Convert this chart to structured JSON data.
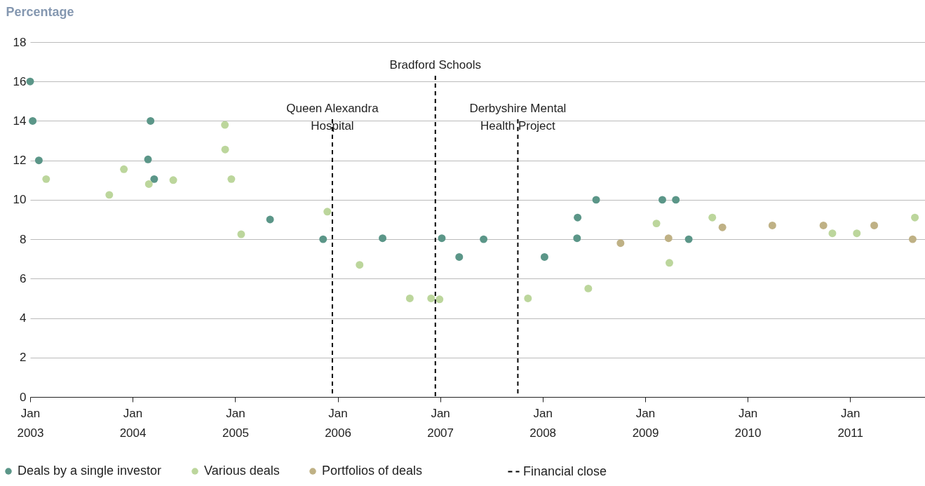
{
  "chart_data": {
    "type": "scatter",
    "ylabel": "Percentage",
    "xlim": [
      "2003-01-01",
      "2011-09-25"
    ],
    "xticks": [
      {
        "value": "2003-01-01",
        "label": "Jan\n2003"
      },
      {
        "value": "2004-01-01",
        "label": "Jan\n2004"
      },
      {
        "value": "2005-01-01",
        "label": "Jan\n2005"
      },
      {
        "value": "2006-01-01",
        "label": "Jan\n2006"
      },
      {
        "value": "2007-01-01",
        "label": "Jan\n2007"
      },
      {
        "value": "2008-01-01",
        "label": "Jan\n2008"
      },
      {
        "value": "2009-01-01",
        "label": "Jan\n2009"
      },
      {
        "value": "2010-01-01",
        "label": "Jan\n2010"
      },
      {
        "value": "2011-01-01",
        "label": "Jan\n2011"
      }
    ],
    "ylim": [
      0,
      18
    ],
    "yticks": [
      0,
      2,
      4,
      6,
      8,
      10,
      12,
      14,
      16,
      18
    ],
    "grid": "y",
    "legend": "bottom",
    "marker": "circle",
    "series": [
      {
        "name": "Deals by a single investor",
        "color": "#5b9688",
        "x": [
          "2003-01-01",
          "2003-01-10",
          "2003-02-01",
          "2004-03-05",
          "2004-02-25",
          "2004-03-18",
          "2005-05-05",
          "2005-11-10",
          "2006-06-10",
          "2007-01-07",
          "2007-03-10",
          "2007-06-05",
          "2008-01-08",
          "2008-05-05",
          "2008-05-03",
          "2008-07-10",
          "2009-03-03",
          "2009-04-20",
          "2009-06-05"
        ],
        "values": [
          16,
          14,
          12,
          14,
          12.05,
          11.05,
          9,
          8,
          8.05,
          8.05,
          7.1,
          8,
          7.1,
          9.1,
          8.05,
          10,
          10,
          10,
          8
        ]
      },
      {
        "name": "Various deals",
        "color": "#bcd69c",
        "x": [
          "2003-02-27",
          "2003-10-10",
          "2003-12-01",
          "2004-02-28",
          "2004-05-25",
          "2004-11-25",
          "2004-11-26",
          "2004-12-18",
          "2005-01-22",
          "2005-11-25",
          "2006-03-20",
          "2006-09-15",
          "2006-11-30",
          "2006-12-30",
          "2007-11-10",
          "2008-06-12",
          "2009-02-10",
          "2009-03-28",
          "2009-08-28",
          "2010-10-30",
          "2011-01-25",
          "2011-08-20"
        ],
        "values": [
          11.05,
          10.25,
          11.55,
          10.8,
          11,
          13.8,
          12.55,
          11.05,
          8.25,
          9.4,
          6.7,
          5,
          5,
          4.95,
          5,
          5.5,
          8.8,
          6.8,
          9.1,
          8.3,
          8.3,
          9.1
        ]
      },
      {
        "name": "Portfolios of deals",
        "color": "#bfb185",
        "x": [
          "2008-10-05",
          "2009-03-25",
          "2009-10-03",
          "2010-03-30",
          "2010-09-28",
          "2011-03-28",
          "2011-08-12"
        ],
        "values": [
          7.8,
          8.05,
          8.6,
          8.7,
          8.7,
          8.7,
          8
        ]
      }
    ],
    "ref_lines": [
      {
        "axis": "x",
        "value": "2005-12-13",
        "label": "Queen Alexandra\nHospital",
        "color": "#000000",
        "line_style": "dashed"
      },
      {
        "axis": "x",
        "value": "2006-12-15",
        "label": "Bradford Schools",
        "color": "#000000",
        "line_style": "dashed"
      },
      {
        "axis": "x",
        "value": "2007-10-05",
        "label": "Derbyshire Mental\nHealth Project",
        "color": "#000000",
        "line_style": "dashed"
      }
    ],
    "annotations": [
      "Financial close"
    ]
  }
}
